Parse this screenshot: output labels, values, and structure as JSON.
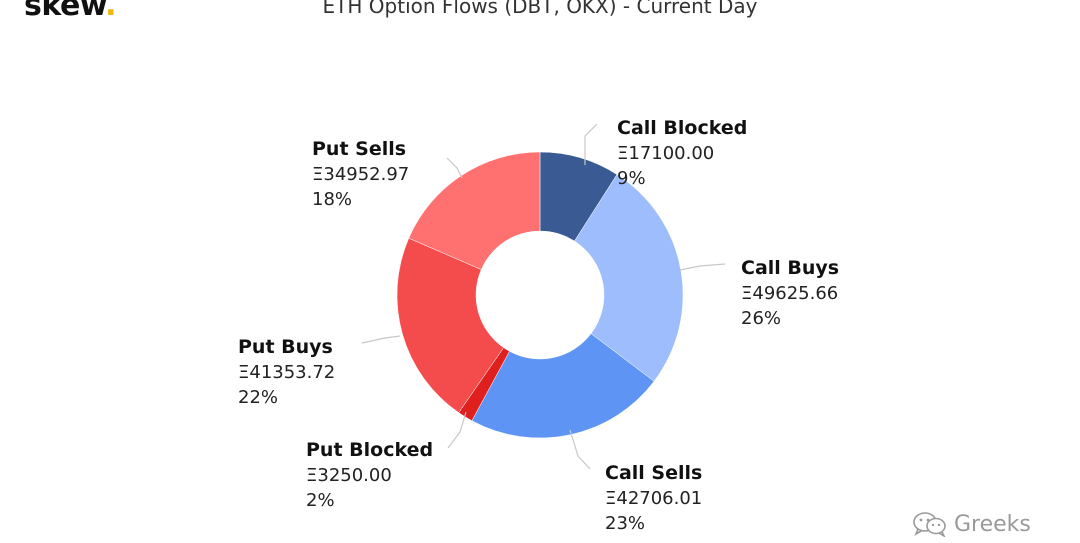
{
  "brand": {
    "logo": "skew",
    "logo_dot": "."
  },
  "watermark": {
    "text": "Greeks",
    "icon": "wechat-icon"
  },
  "chart_data": {
    "type": "pie",
    "variant": "donut",
    "title": "ETH Option Flows (DBT, OKX) - Current Day",
    "currency_symbol": "Ξ",
    "legend": "none",
    "slices": [
      {
        "name": "Call Blocked",
        "value": 17100.0,
        "value_label": "Ξ17100.00",
        "percent_label": "9%",
        "color": "#3a5a94"
      },
      {
        "name": "Call Buys",
        "value": 49625.66,
        "value_label": "Ξ49625.66",
        "percent_label": "26%",
        "color": "#9dbdfc"
      },
      {
        "name": "Call Sells",
        "value": 42706.01,
        "value_label": "Ξ42706.01",
        "percent_label": "23%",
        "color": "#5e95f5"
      },
      {
        "name": "Put Blocked",
        "value": 3250.0,
        "value_label": "Ξ3250.00",
        "percent_label": "2%",
        "color": "#e01f1f"
      },
      {
        "name": "Put Buys",
        "value": 41353.72,
        "value_label": "Ξ41353.72",
        "percent_label": "22%",
        "color": "#f44c4c"
      },
      {
        "name": "Put Sells",
        "value": 34952.97,
        "value_label": "Ξ34952.97",
        "percent_label": "18%",
        "color": "#ff7070"
      }
    ]
  }
}
